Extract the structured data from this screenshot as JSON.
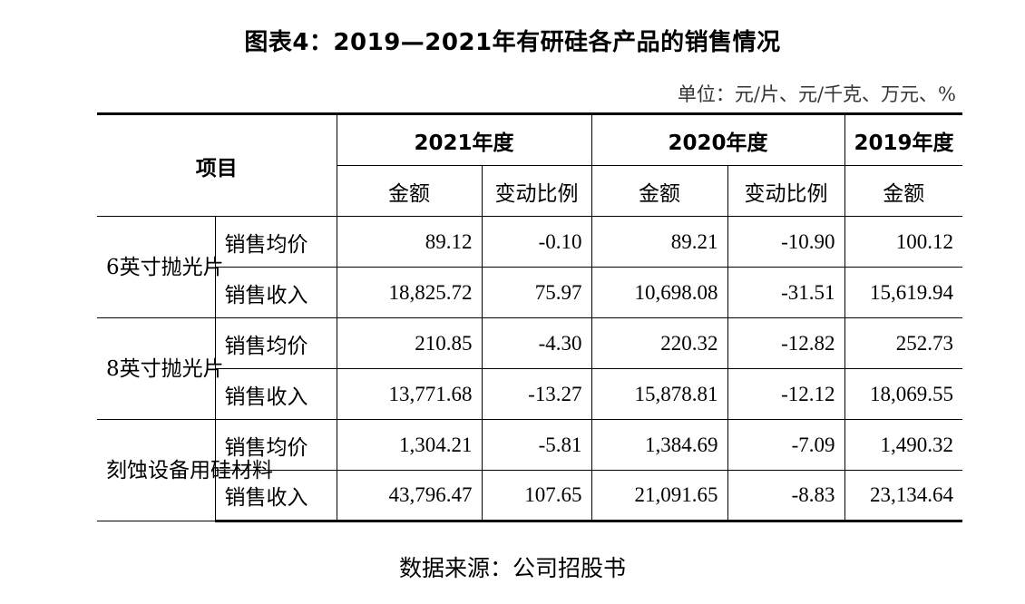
{
  "title": "图表4：2019—2021年有研硅各产品的销售情况",
  "unit": "单位：元/片、元/千克、万元、%",
  "header": {
    "item": "项目",
    "y2021": "2021年度",
    "y2020": "2020年度",
    "y2019": "2019年度",
    "amount": "金额",
    "change": "变动比例"
  },
  "rows": [
    {
      "product": "6英寸抛光片",
      "metric": "销售均价",
      "a2021": "89.12",
      "c2021": "-0.10",
      "a2020": "89.21",
      "c2020": "-10.90",
      "a2019": "100.12"
    },
    {
      "product": "6英寸抛光片",
      "metric": "销售收入",
      "a2021": "18,825.72",
      "c2021": "75.97",
      "a2020": "10,698.08",
      "c2020": "-31.51",
      "a2019": "15,619.94"
    },
    {
      "product": "8英寸抛光片",
      "metric": "销售均价",
      "a2021": "210.85",
      "c2021": "-4.30",
      "a2020": "220.32",
      "c2020": "-12.82",
      "a2019": "252.73"
    },
    {
      "product": "8英寸抛光片",
      "metric": "销售收入",
      "a2021": "13,771.68",
      "c2021": "-13.27",
      "a2020": "15,878.81",
      "c2020": "-12.12",
      "a2019": "18,069.55"
    },
    {
      "product": "刻蚀设备用硅材料",
      "metric": "销售均价",
      "a2021": "1,304.21",
      "c2021": "-5.81",
      "a2020": "1,384.69",
      "c2020": "-7.09",
      "a2019": "1,490.32"
    },
    {
      "product": "刻蚀设备用硅材料",
      "metric": "销售收入",
      "a2021": "43,796.47",
      "c2021": "107.65",
      "a2020": "21,091.65",
      "c2020": "-8.83",
      "a2019": "23,134.64"
    }
  ],
  "source": "数据来源：公司招股书"
}
